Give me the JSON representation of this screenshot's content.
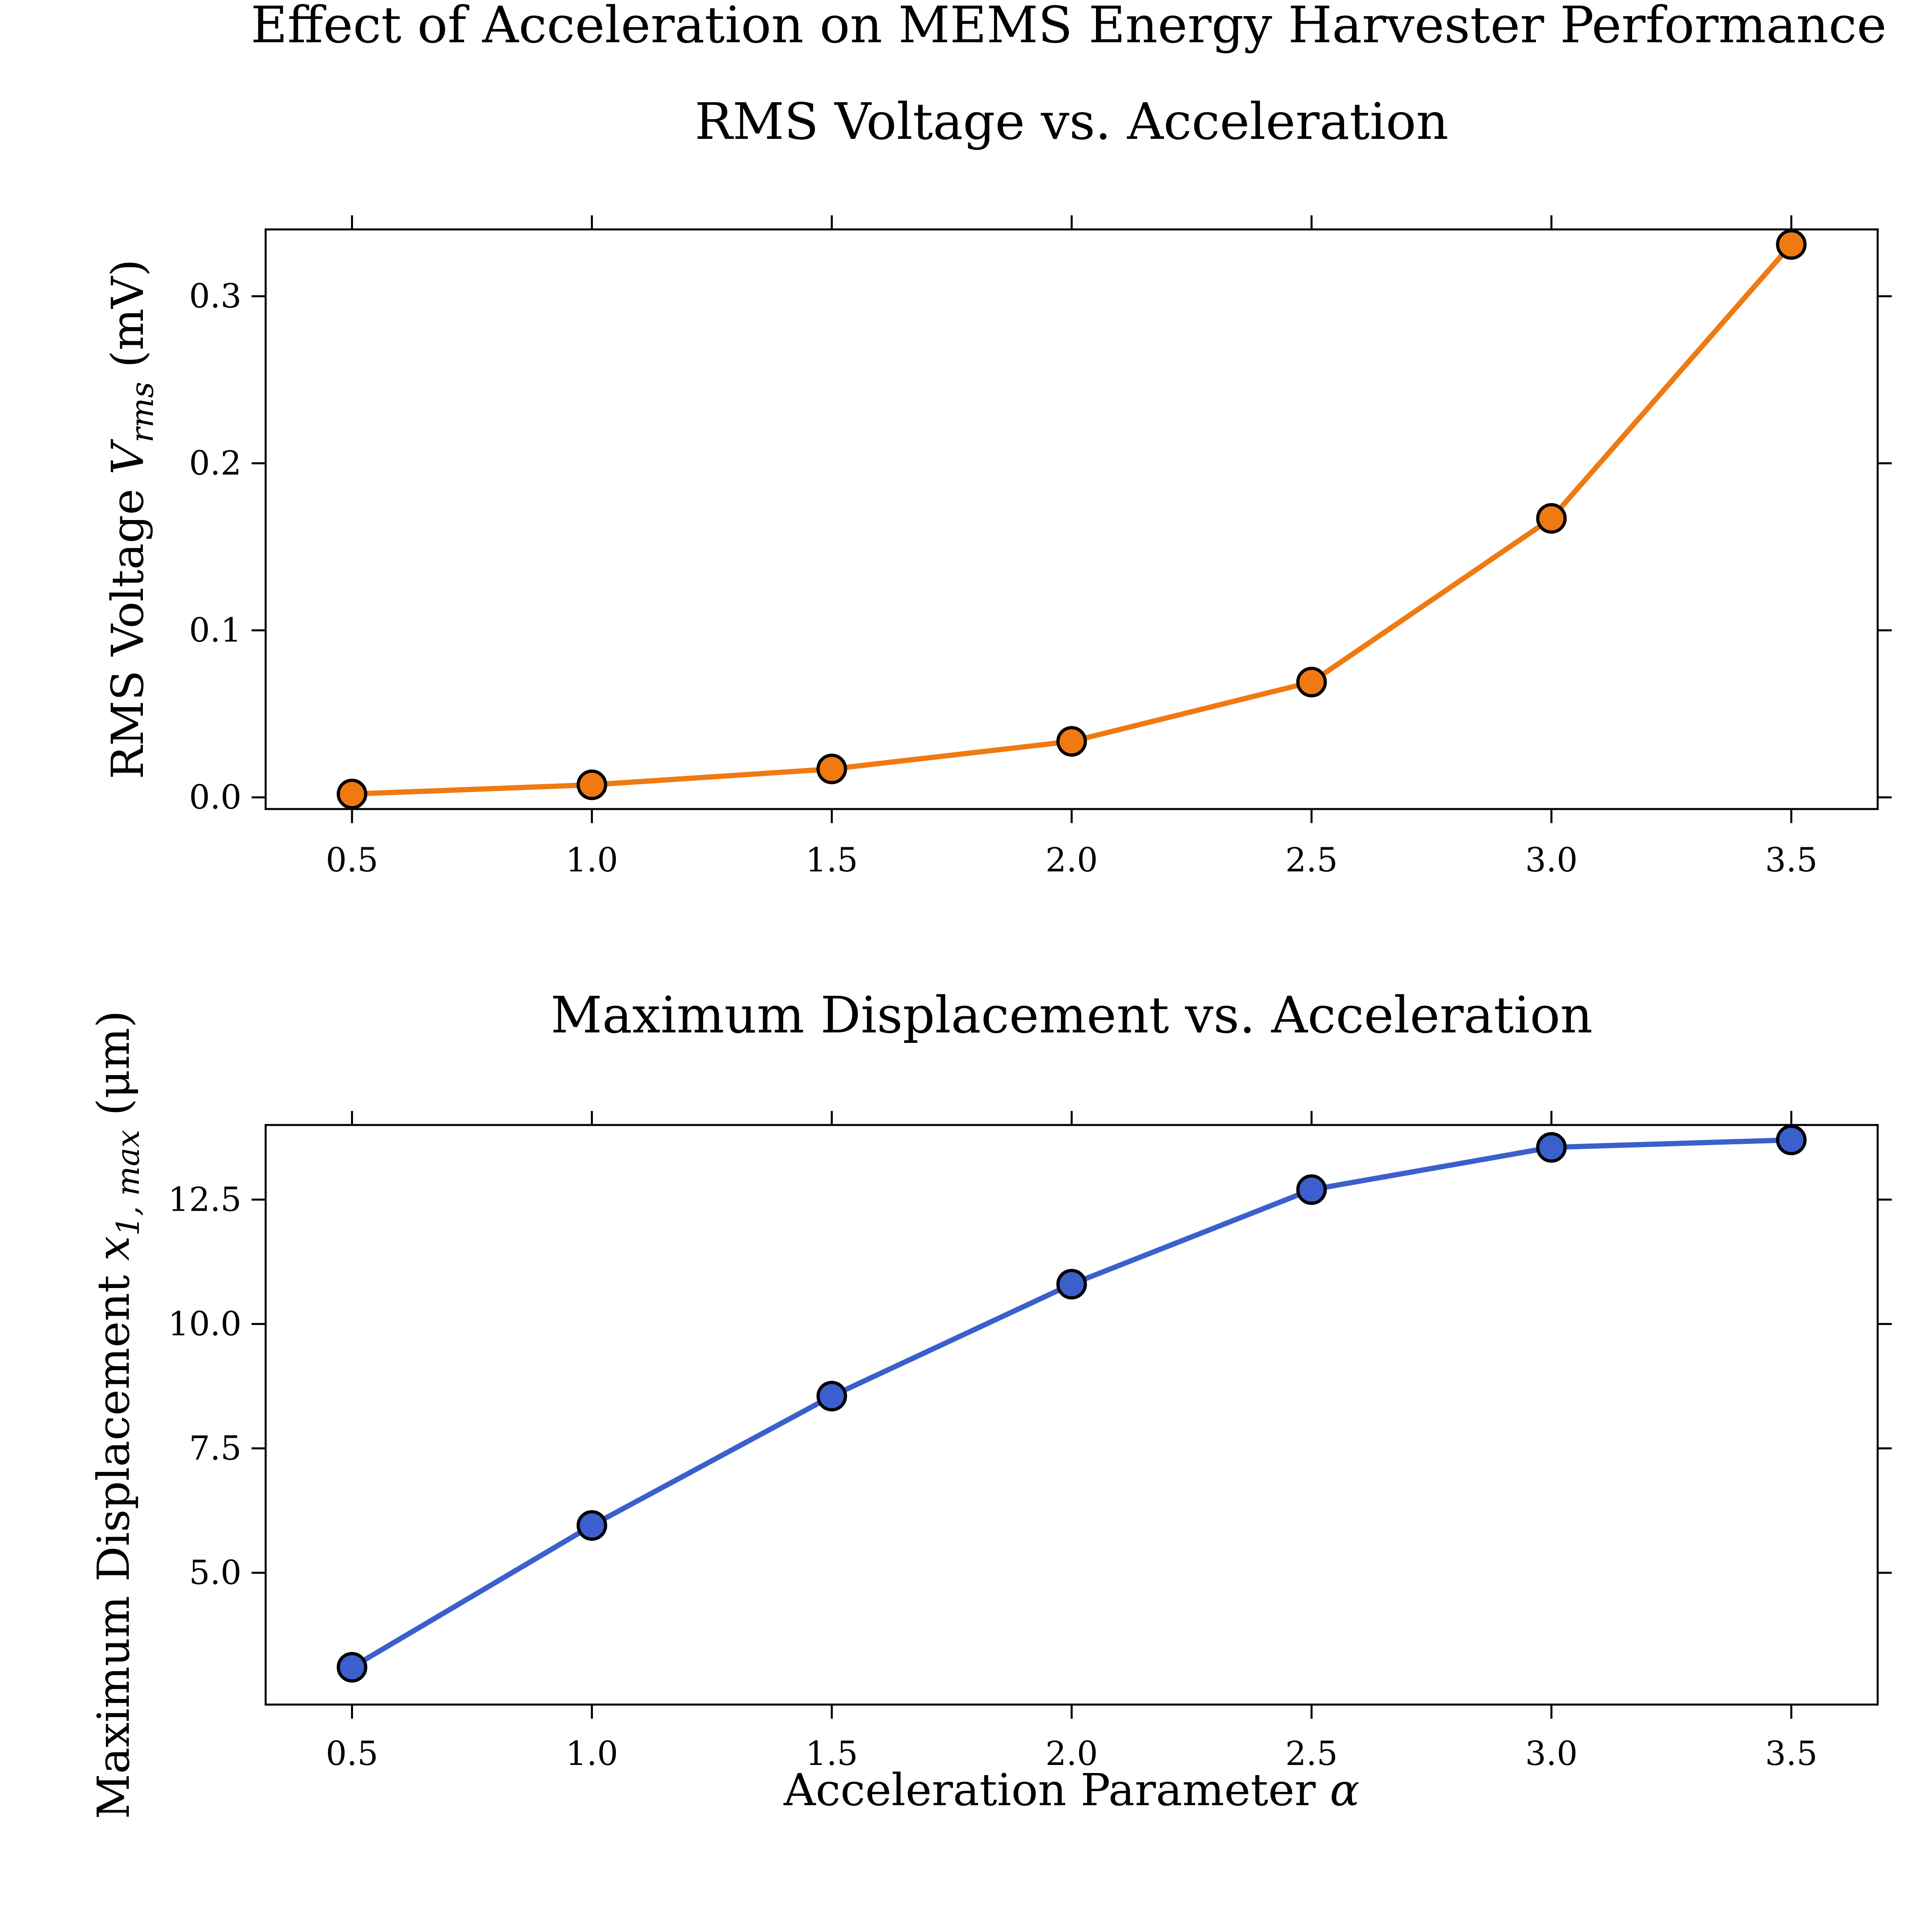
{
  "figure": {
    "suptitle": "Effect of Acceleration on MEMS Energy Harvester Performance"
  },
  "chart_data": [
    {
      "type": "line",
      "title": "RMS Voltage vs. Acceleration",
      "xlabel": "",
      "ylabel": "RMS Voltage V_rms (mV)",
      "ylabel_parts": {
        "prefix": "RMS Voltage ",
        "symbol": "V",
        "sub": "rms",
        "suffix": " (mV)"
      },
      "x": [
        0.5,
        1.0,
        1.5,
        2.0,
        2.5,
        3.0,
        3.5
      ],
      "series": [
        {
          "values": [
            0.002,
            0.0075,
            0.017,
            0.0335,
            0.069,
            0.167,
            0.331
          ],
          "color": "#ef7a12"
        }
      ],
      "xlim": [
        0.32,
        3.68
      ],
      "ylim": [
        -0.007,
        0.34
      ],
      "xticks": [
        0.5,
        1.0,
        1.5,
        2.0,
        2.5,
        3.0,
        3.5
      ],
      "xtick_labels": [
        "0.5",
        "1.0",
        "1.5",
        "2.0",
        "2.5",
        "3.0",
        "3.5"
      ],
      "yticks": [
        0.0,
        0.1,
        0.2,
        0.3
      ],
      "ytick_labels": [
        "0.0",
        "0.1",
        "0.2",
        "0.3"
      ],
      "grid": false,
      "marker": "circle",
      "marker_edge_color": "#000000"
    },
    {
      "type": "line",
      "title": "Maximum Displacement vs. Acceleration",
      "xlabel": "Acceleration Parameter α",
      "xlabel_parts": {
        "prefix": "Acceleration Parameter ",
        "symbol": "α"
      },
      "ylabel": "Maximum Displacement x_1,max (μm)",
      "ylabel_parts": {
        "prefix": "Maximum Displacement ",
        "symbol": "x",
        "sub": "1, max",
        "suffix": " (μm)"
      },
      "x": [
        0.5,
        1.0,
        1.5,
        2.0,
        2.5,
        3.0,
        3.5
      ],
      "series": [
        {
          "values": [
            3.1,
            5.95,
            8.55,
            10.8,
            12.7,
            13.55,
            13.7
          ],
          "color": "#3b5fcc"
        }
      ],
      "xlim": [
        0.32,
        3.68
      ],
      "ylim": [
        2.35,
        14.0
      ],
      "xticks": [
        0.5,
        1.0,
        1.5,
        2.0,
        2.5,
        3.0,
        3.5
      ],
      "xtick_labels": [
        "0.5",
        "1.0",
        "1.5",
        "2.0",
        "2.5",
        "3.0",
        "3.5"
      ],
      "yticks": [
        5.0,
        7.5,
        10.0,
        12.5
      ],
      "ytick_labels": [
        "5.0",
        "7.5",
        "10.0",
        "12.5"
      ],
      "grid": false,
      "marker": "circle",
      "marker_edge_color": "#000000"
    }
  ]
}
